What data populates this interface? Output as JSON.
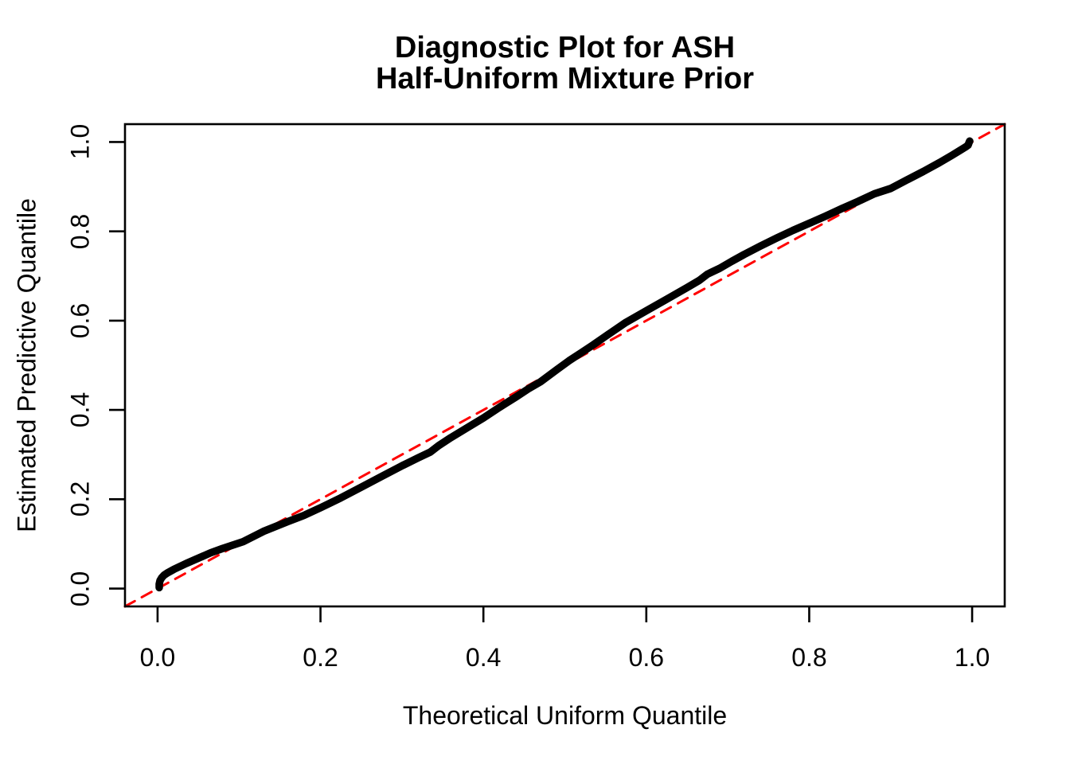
{
  "figure": {
    "title_line1": "Diagnostic Plot for ASH",
    "title_line2": "Half-Uniform Mixture Prior",
    "xlabel": "Theoretical Uniform Quantile",
    "ylabel": "Estimated Predictive Quantile"
  },
  "colors": {
    "curve": "#000000",
    "reference_line": "#FF0000",
    "frame": "#000000",
    "background": "#FFFFFF"
  },
  "chart_data": {
    "type": "line",
    "title": "Diagnostic Plot for ASH\nHalf-Uniform Mixture Prior",
    "xlabel": "Theoretical Uniform Quantile",
    "ylabel": "Estimated Predictive Quantile",
    "xlim": [
      -0.04,
      1.04
    ],
    "ylim": [
      -0.04,
      1.04
    ],
    "grid": false,
    "legend": null,
    "x_tick_values": [
      0.0,
      0.2,
      0.4,
      0.6,
      0.8,
      1.0
    ],
    "x_tick_labels": [
      "0.0",
      "0.2",
      "0.4",
      "0.6",
      "0.8",
      "1.0"
    ],
    "y_tick_values": [
      0.0,
      0.2,
      0.4,
      0.6,
      0.8,
      1.0
    ],
    "y_tick_labels": [
      "0.0",
      "0.2",
      "0.4",
      "0.6",
      "0.8",
      "1.0"
    ],
    "series": [
      {
        "name": "empirical-predictive-quantiles",
        "style": "thick-solid",
        "color": "#000000",
        "points": [
          [
            0.002,
            0.002
          ],
          [
            0.002,
            0.01
          ],
          [
            0.003,
            0.018
          ],
          [
            0.005,
            0.024
          ],
          [
            0.008,
            0.03
          ],
          [
            0.012,
            0.035
          ],
          [
            0.02,
            0.043
          ],
          [
            0.035,
            0.056
          ],
          [
            0.05,
            0.068
          ],
          [
            0.065,
            0.08
          ],
          [
            0.08,
            0.09
          ],
          [
            0.105,
            0.105
          ],
          [
            0.13,
            0.128
          ],
          [
            0.16,
            0.15
          ],
          [
            0.18,
            0.164
          ],
          [
            0.2,
            0.181
          ],
          [
            0.225,
            0.203
          ],
          [
            0.25,
            0.227
          ],
          [
            0.275,
            0.251
          ],
          [
            0.3,
            0.275
          ],
          [
            0.32,
            0.293
          ],
          [
            0.335,
            0.306
          ],
          [
            0.345,
            0.32
          ],
          [
            0.36,
            0.338
          ],
          [
            0.38,
            0.36
          ],
          [
            0.4,
            0.382
          ],
          [
            0.42,
            0.406
          ],
          [
            0.44,
            0.429
          ],
          [
            0.455,
            0.447
          ],
          [
            0.47,
            0.463
          ],
          [
            0.49,
            0.49
          ],
          [
            0.505,
            0.51
          ],
          [
            0.52,
            0.528
          ],
          [
            0.535,
            0.546
          ],
          [
            0.55,
            0.565
          ],
          [
            0.575,
            0.596
          ],
          [
            0.6,
            0.622
          ],
          [
            0.625,
            0.648
          ],
          [
            0.65,
            0.674
          ],
          [
            0.665,
            0.69
          ],
          [
            0.675,
            0.704
          ],
          [
            0.69,
            0.717
          ],
          [
            0.705,
            0.733
          ],
          [
            0.72,
            0.748
          ],
          [
            0.74,
            0.767
          ],
          [
            0.76,
            0.785
          ],
          [
            0.78,
            0.802
          ],
          [
            0.8,
            0.818
          ],
          [
            0.82,
            0.834
          ],
          [
            0.84,
            0.851
          ],
          [
            0.86,
            0.867
          ],
          [
            0.88,
            0.884
          ],
          [
            0.9,
            0.896
          ],
          [
            0.92,
            0.915
          ],
          [
            0.94,
            0.934
          ],
          [
            0.96,
            0.954
          ],
          [
            0.975,
            0.97
          ],
          [
            0.985,
            0.981
          ],
          [
            0.992,
            0.989
          ],
          [
            0.995,
            0.993
          ],
          [
            0.996,
            0.998
          ],
          [
            0.997,
            1.002
          ]
        ]
      },
      {
        "name": "identity-reference-line",
        "style": "dashed",
        "color": "#FF0000",
        "points": [
          [
            -0.04,
            -0.04
          ],
          [
            1.04,
            1.04
          ]
        ]
      }
    ]
  }
}
